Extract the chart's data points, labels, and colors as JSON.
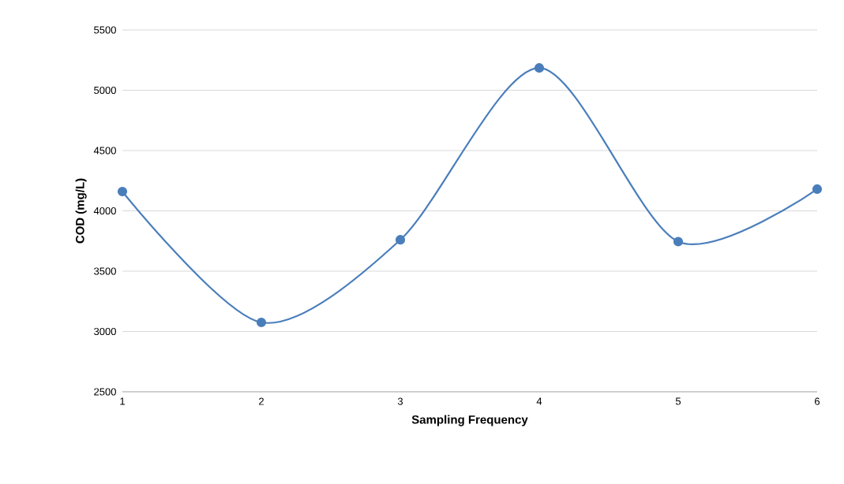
{
  "chart_data": {
    "type": "line",
    "xlabel": "Sampling Frequency",
    "ylabel": "COD (mg/L)",
    "x": [
      1,
      2,
      3,
      4,
      5,
      6
    ],
    "series": [
      {
        "color": "#4a7ebb",
        "values": [
          4160,
          3075,
          3760,
          5185,
          3745,
          4180
        ]
      }
    ],
    "xlim": [
      1,
      6
    ],
    "xticks": [
      1,
      2,
      3,
      4,
      5,
      6
    ],
    "ylim": [
      2500,
      5500
    ],
    "yticks": [
      2500,
      3000,
      3500,
      4000,
      4500,
      5000,
      5500
    ],
    "grid": "y",
    "marker": "circle",
    "line_style": "solid"
  }
}
